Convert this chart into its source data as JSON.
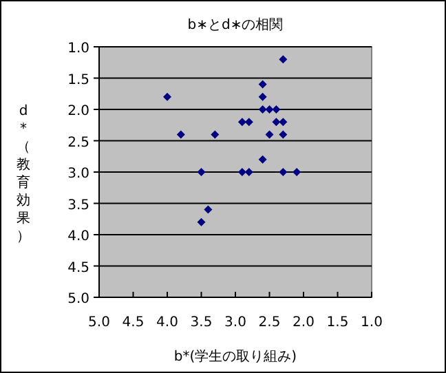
{
  "chart_data": {
    "type": "scatter",
    "title": "b∗とd∗の相関",
    "xlabel": "b*(学生の取り組み)",
    "ylabel": "d*（教育効果）",
    "x": [
      2.3,
      2.6,
      4.0,
      2.6,
      2.6,
      2.5,
      2.4,
      2.9,
      2.8,
      2.4,
      2.3,
      3.8,
      3.3,
      2.5,
      2.3,
      2.6,
      3.5,
      2.9,
      2.8,
      2.3,
      2.1,
      3.4,
      3.5
    ],
    "values": [
      1.2,
      1.6,
      1.8,
      1.8,
      2.0,
      2.0,
      2.0,
      2.2,
      2.2,
      2.2,
      2.2,
      2.4,
      2.4,
      2.4,
      2.4,
      2.8,
      3.0,
      3.0,
      3.0,
      3.0,
      3.0,
      3.6,
      3.8
    ],
    "color": "#000080",
    "marker": "diamond",
    "grid": "y",
    "xlim": [
      5.0,
      1.0
    ],
    "ylim": [
      5.0,
      1.0
    ],
    "xticks": [
      {
        "value": 5,
        "label": "5.0"
      },
      {
        "value": 4.5,
        "label": "4.5"
      },
      {
        "value": 4,
        "label": "4.0"
      },
      {
        "value": 3.5,
        "label": "3.5"
      },
      {
        "value": 3,
        "label": "3.0"
      },
      {
        "value": 2.5,
        "label": "2.5"
      },
      {
        "value": 2,
        "label": "2.0"
      },
      {
        "value": 1.5,
        "label": "1.5"
      },
      {
        "value": 1,
        "label": "1.0"
      }
    ],
    "yticks": [
      {
        "value": 1,
        "label": "1.0"
      },
      {
        "value": 1.5,
        "label": "1.5"
      },
      {
        "value": 2,
        "label": "2.0"
      },
      {
        "value": 2.5,
        "label": "2.5"
      },
      {
        "value": 3,
        "label": "3.0"
      },
      {
        "value": 3.5,
        "label": "3.5"
      },
      {
        "value": 4,
        "label": "4.0"
      },
      {
        "value": 4.5,
        "label": "4.5"
      },
      {
        "value": 5,
        "label": "5.0"
      }
    ]
  }
}
